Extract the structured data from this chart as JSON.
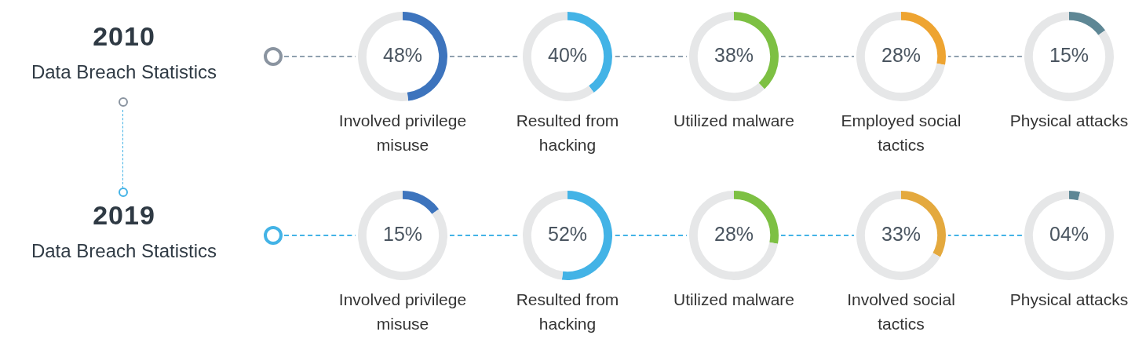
{
  "chart_data": [
    {
      "type": "other",
      "title": "2010",
      "subtitle": "Data Breach Statistics"
    },
    {
      "type": "donut",
      "categories": [
        null,
        null
      ],
      "values": [
        48,
        52
      ],
      "colors": [
        "#3d74bd",
        "#e6e7e8"
      ],
      "value_labels": [
        "48%",
        null
      ],
      "annotations": [
        "Involved privilege misuse"
      ]
    },
    {
      "type": "donut",
      "categories": [
        null,
        null
      ],
      "values": [
        40,
        60
      ],
      "colors": [
        "#43b3e6",
        "#e6e7e8"
      ],
      "value_labels": [
        "40%",
        null
      ],
      "annotations": [
        "Resulted from hacking"
      ]
    },
    {
      "type": "donut",
      "categories": [
        null,
        null
      ],
      "values": [
        38,
        62
      ],
      "colors": [
        "#7dc043",
        "#e6e7e8"
      ],
      "value_labels": [
        "38%",
        null
      ],
      "annotations": [
        "Utilized malware"
      ]
    },
    {
      "type": "donut",
      "categories": [
        null,
        null
      ],
      "values": [
        28,
        72
      ],
      "colors": [
        "#eea431",
        "#e6e7e8"
      ],
      "value_labels": [
        "28%",
        null
      ],
      "annotations": [
        "Employed social tactics"
      ]
    },
    {
      "type": "donut",
      "categories": [
        null,
        null
      ],
      "values": [
        15,
        85
      ],
      "colors": [
        "#5e8795",
        "#e6e7e8"
      ],
      "value_labels": [
        "15%",
        null
      ],
      "annotations": [
        "Physical attacks"
      ]
    },
    {
      "type": "other",
      "title": "2019",
      "subtitle": "Data Breach Statistics"
    },
    {
      "type": "donut",
      "categories": [
        null,
        null
      ],
      "values": [
        15,
        85
      ],
      "colors": [
        "#3d74bd",
        "#e6e7e8"
      ],
      "value_labels": [
        "15%",
        null
      ],
      "annotations": [
        "Involved privilege misuse"
      ]
    },
    {
      "type": "donut",
      "categories": [
        null,
        null
      ],
      "values": [
        52,
        48
      ],
      "colors": [
        "#43b3e6",
        "#e6e7e8"
      ],
      "value_labels": [
        "52%",
        null
      ],
      "annotations": [
        "Resulted from hacking"
      ]
    },
    {
      "type": "donut",
      "categories": [
        null,
        null
      ],
      "values": [
        28,
        72
      ],
      "colors": [
        "#7dc043",
        "#e6e7e8"
      ],
      "value_labels": [
        "28%",
        null
      ],
      "annotations": [
        "Utilized malware"
      ]
    },
    {
      "type": "donut",
      "categories": [
        null,
        null
      ],
      "values": [
        33,
        67
      ],
      "colors": [
        "#e4a93e",
        "#e6e7e8"
      ],
      "value_labels": [
        "33%",
        null
      ],
      "annotations": [
        "Involved social tactics"
      ]
    },
    {
      "type": "donut",
      "categories": [
        null,
        null
      ],
      "values": [
        4,
        96
      ],
      "colors": [
        "#5e8795",
        "#e6e7e8"
      ],
      "value_labels": [
        "04%",
        null
      ],
      "annotations": [
        "Physical attacks"
      ]
    }
  ]
}
